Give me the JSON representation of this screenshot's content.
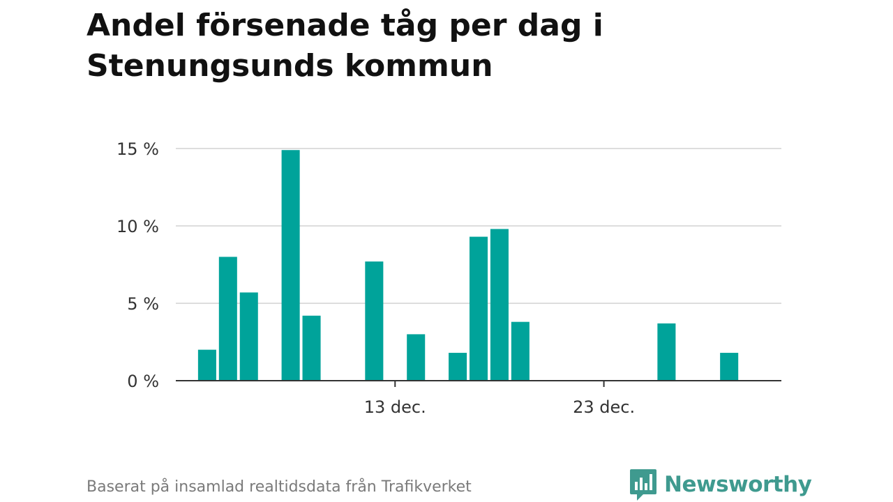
{
  "chart_data": {
    "type": "bar",
    "title": "Andel försenade tåg per dag i Stenungsunds kommun",
    "xlabel": "",
    "ylabel": "",
    "x_axis": {
      "type": "date",
      "range": [
        "2023-12-03",
        "2023-12-31"
      ],
      "tick_labels": [
        {
          "date": "2023-12-13",
          "label": "13 dec."
        },
        {
          "date": "2023-12-23",
          "label": "23 dec."
        }
      ]
    },
    "y_axis": {
      "range": [
        0,
        15
      ],
      "ticks": [
        {
          "value": 0,
          "label": "0 %"
        },
        {
          "value": 5,
          "label": "5 %"
        },
        {
          "value": 10,
          "label": "10 %"
        },
        {
          "value": 15,
          "label": "15 %"
        }
      ]
    },
    "grid": true,
    "bar_color": "#00a39a",
    "series": [
      {
        "x": [
          "2023-12-04",
          "2023-12-05",
          "2023-12-06",
          "2023-12-08",
          "2023-12-09",
          "2023-12-12",
          "2023-12-14",
          "2023-12-16",
          "2023-12-17",
          "2023-12-18",
          "2023-12-19",
          "2023-12-26",
          "2023-12-29"
        ],
        "values": [
          2.0,
          8.0,
          5.7,
          14.9,
          4.2,
          7.7,
          3.0,
          1.8,
          9.3,
          9.8,
          3.8,
          3.7,
          1.8
        ]
      }
    ]
  },
  "footer": {
    "source": "Baserat på insamlad realtidsdata från Trafikverket",
    "brand": "Newsworthy",
    "brand_color": "#3f9a8f",
    "logo_icon": "bar-chart-speech-bubble-icon"
  }
}
